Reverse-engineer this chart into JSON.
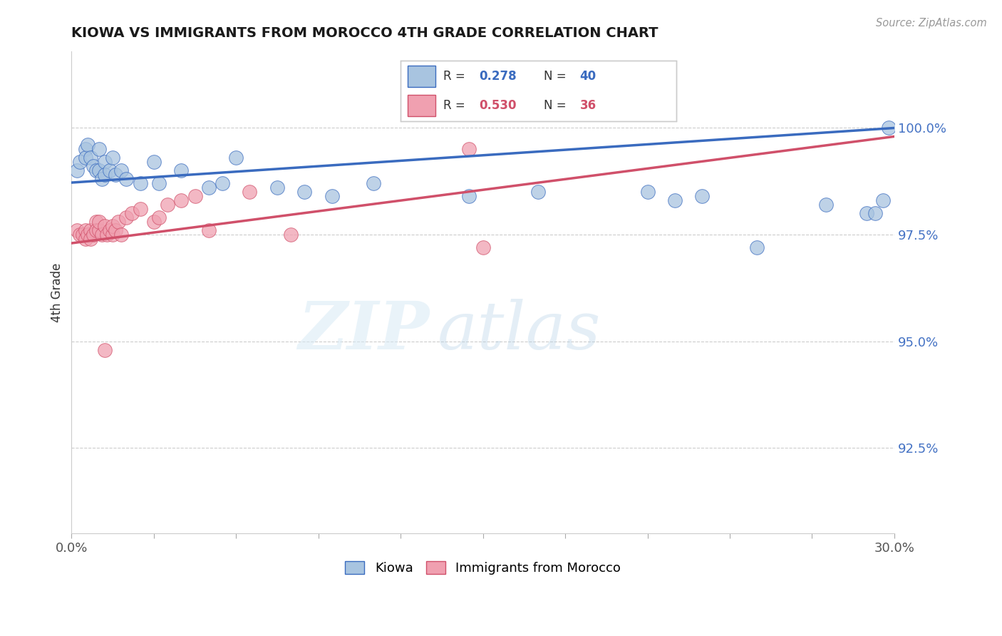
{
  "title": "KIOWA VS IMMIGRANTS FROM MOROCCO 4TH GRADE CORRELATION CHART",
  "source_text": "Source: ZipAtlas.com",
  "ylabel": "4th Grade",
  "ytick_labels": [
    "100.0%",
    "97.5%",
    "95.0%",
    "92.5%"
  ],
  "ytick_values": [
    100.0,
    97.5,
    95.0,
    92.5
  ],
  "xmin": 0.0,
  "xmax": 30.0,
  "ymin": 90.5,
  "ymax": 101.8,
  "legend_labels": [
    "Kiowa",
    "Immigrants from Morocco"
  ],
  "blue_R": 0.278,
  "blue_N": 40,
  "pink_R": 0.53,
  "pink_N": 36,
  "blue_color": "#a8c4e0",
  "pink_color": "#f0a0b0",
  "blue_line_color": "#3a6bbf",
  "pink_line_color": "#d0506a",
  "blue_scatter_x": [
    0.2,
    0.3,
    0.5,
    0.5,
    0.6,
    0.7,
    0.8,
    0.9,
    1.0,
    1.0,
    1.1,
    1.2,
    1.2,
    1.4,
    1.5,
    1.6,
    1.8,
    2.0,
    2.5,
    3.0,
    3.2,
    4.0,
    5.0,
    5.5,
    6.0,
    7.5,
    8.5,
    9.5,
    11.0,
    14.5,
    17.0,
    21.0,
    22.0,
    23.0,
    25.0,
    27.5,
    29.0,
    29.3,
    29.6,
    29.8
  ],
  "blue_scatter_y": [
    99.0,
    99.2,
    99.5,
    99.3,
    99.6,
    99.3,
    99.1,
    99.0,
    99.5,
    99.0,
    98.8,
    99.2,
    98.9,
    99.0,
    99.3,
    98.9,
    99.0,
    98.8,
    98.7,
    99.2,
    98.7,
    99.0,
    98.6,
    98.7,
    99.3,
    98.6,
    98.5,
    98.4,
    98.7,
    98.4,
    98.5,
    98.5,
    98.3,
    98.4,
    97.2,
    98.2,
    98.0,
    98.0,
    98.3,
    100.0
  ],
  "pink_scatter_x": [
    0.2,
    0.3,
    0.4,
    0.5,
    0.5,
    0.6,
    0.7,
    0.7,
    0.8,
    0.9,
    0.9,
    1.0,
    1.0,
    1.1,
    1.2,
    1.3,
    1.4,
    1.5,
    1.5,
    1.6,
    1.7,
    1.8,
    2.0,
    2.2,
    2.5,
    3.0,
    3.2,
    3.5,
    4.0,
    4.5,
    5.0,
    6.5,
    8.0,
    14.5,
    15.0,
    1.2
  ],
  "pink_scatter_y": [
    97.6,
    97.5,
    97.5,
    97.6,
    97.4,
    97.5,
    97.6,
    97.4,
    97.5,
    97.8,
    97.6,
    97.6,
    97.8,
    97.5,
    97.7,
    97.5,
    97.6,
    97.5,
    97.7,
    97.6,
    97.8,
    97.5,
    97.9,
    98.0,
    98.1,
    97.8,
    97.9,
    98.2,
    98.3,
    98.4,
    97.6,
    98.5,
    97.5,
    99.5,
    97.2,
    94.8
  ]
}
